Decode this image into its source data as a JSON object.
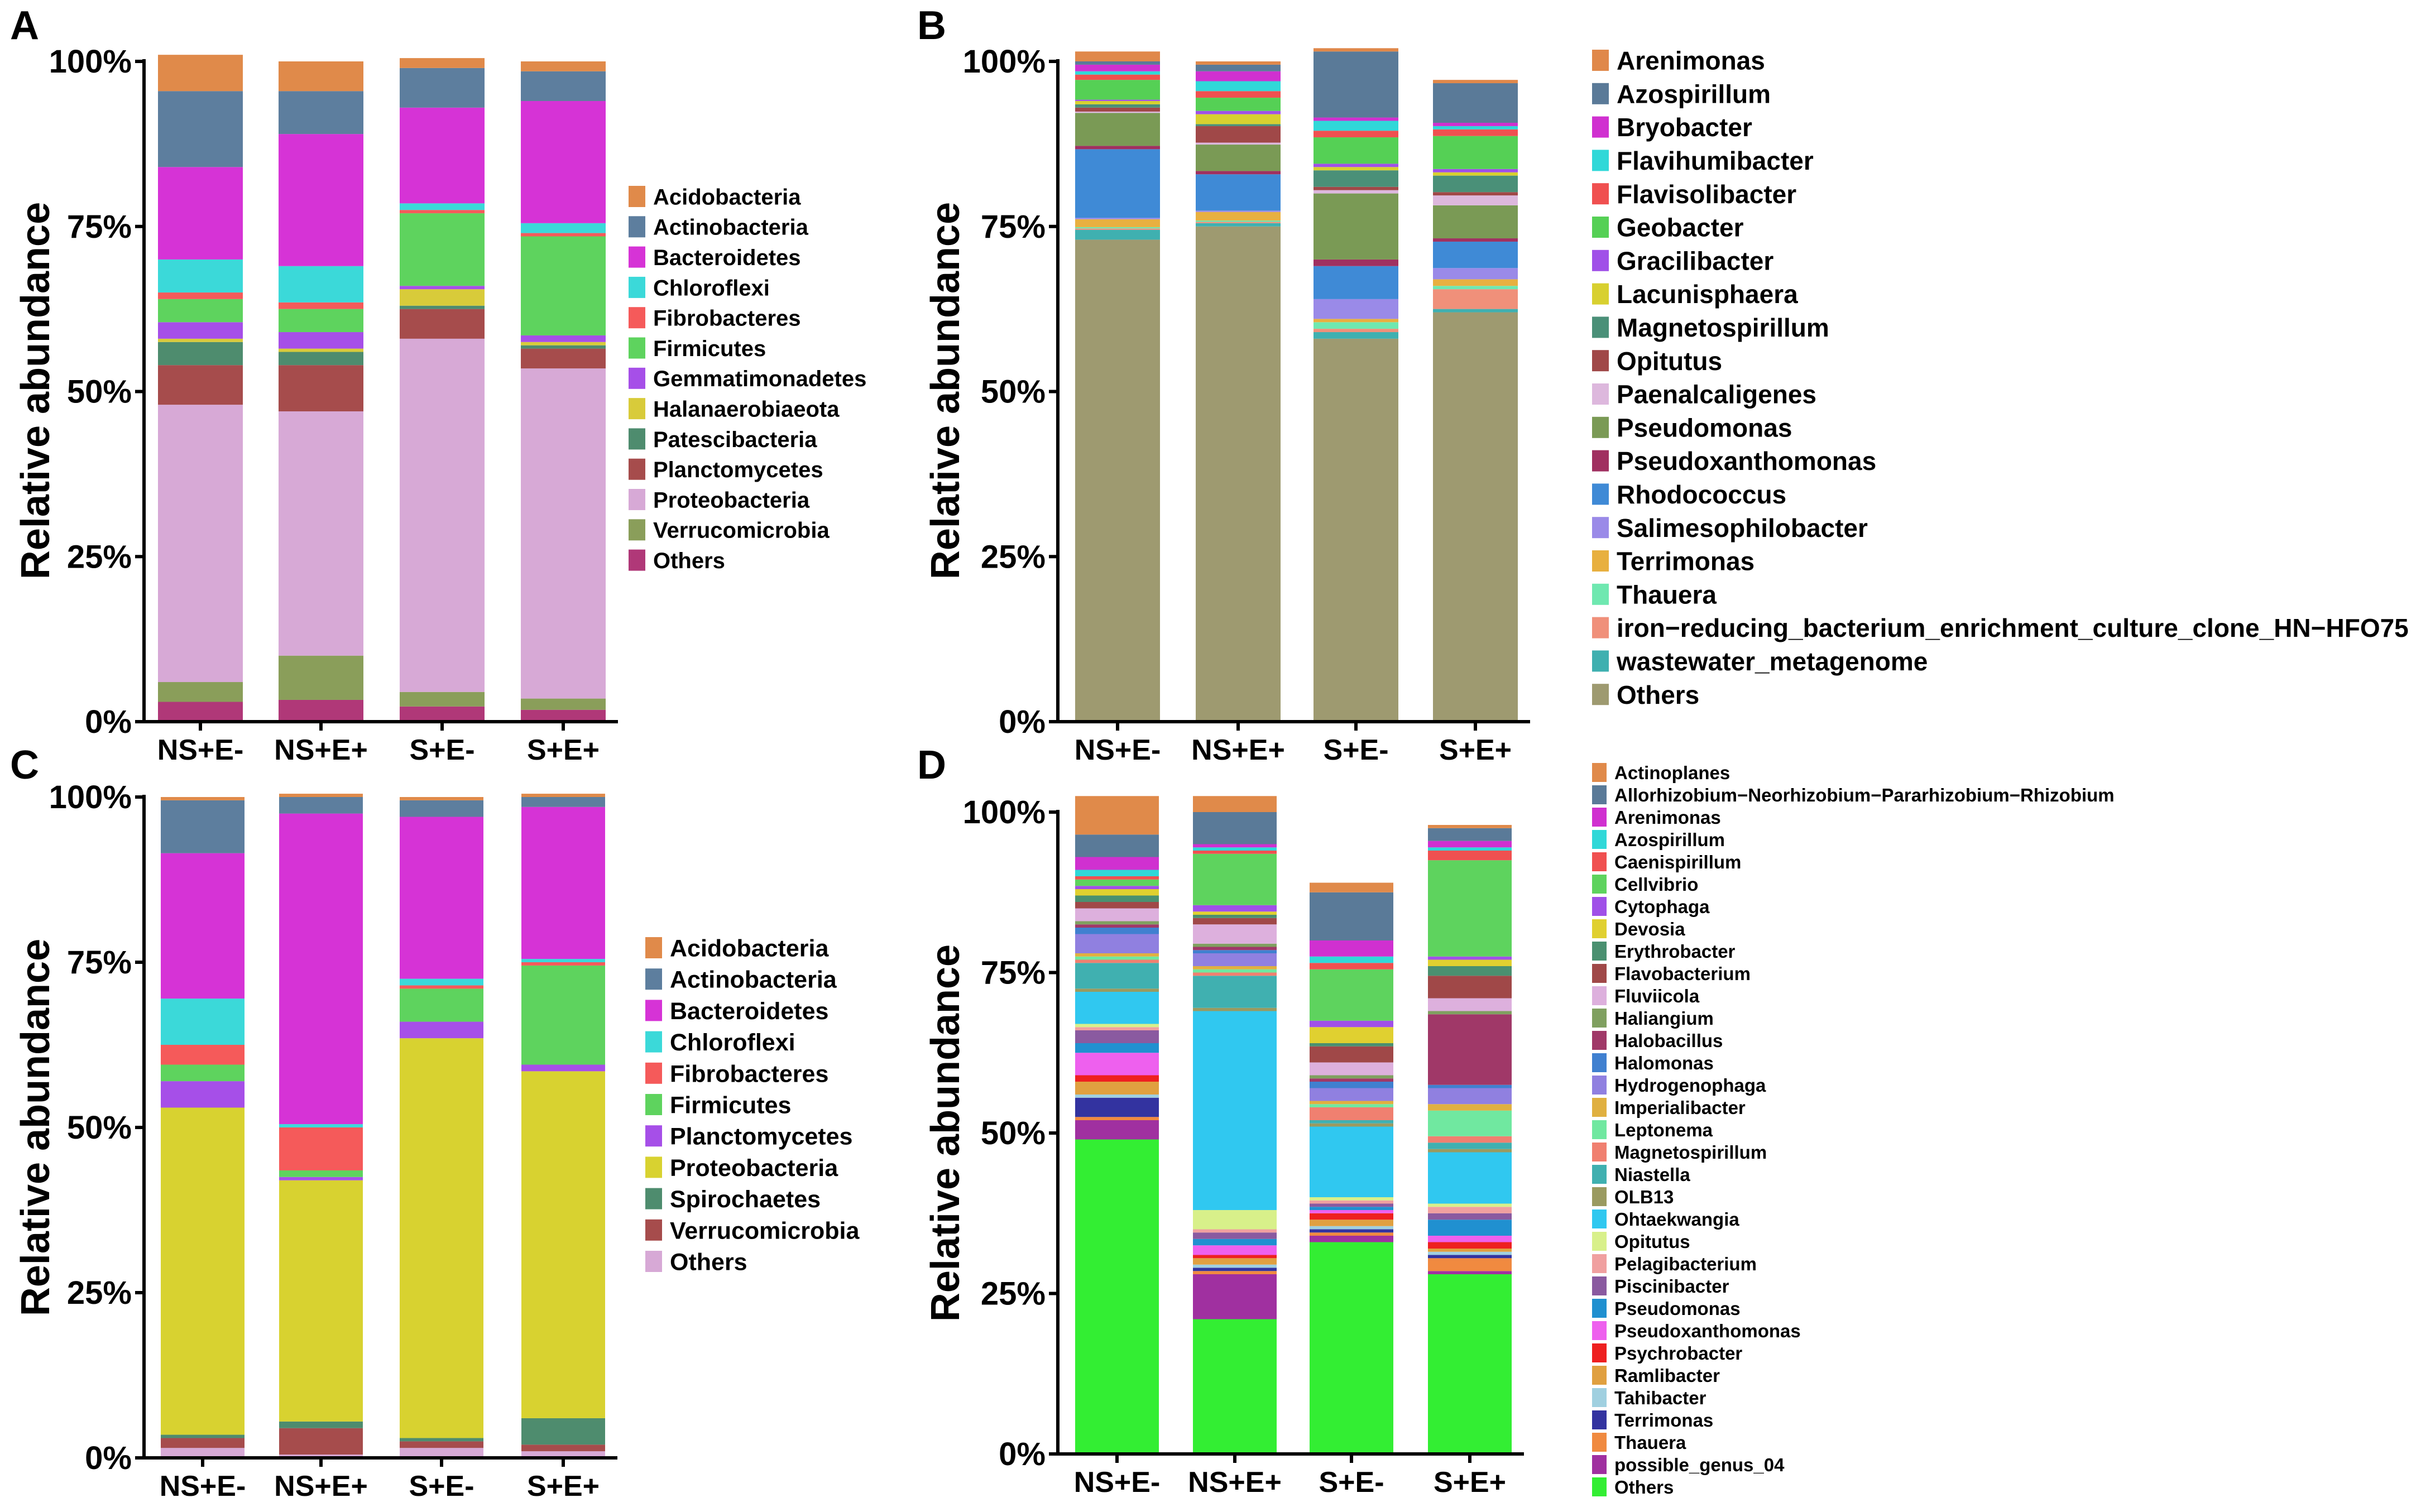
{
  "chart_data": [
    {
      "panel": "A",
      "type": "bar",
      "stacked": true,
      "ylabel": "Relative abundance",
      "xlabel": "",
      "ylim": [
        0,
        100
      ],
      "yticks": [
        "0%",
        "25%",
        "50%",
        "75%",
        "100%"
      ],
      "categories": [
        "NS+E-",
        "NS+E+",
        "S+E-",
        "S+E+"
      ],
      "legend_position": "right",
      "series": [
        {
          "name": "Others",
          "color": "#b03878",
          "values": [
            3,
            3.3,
            2.3,
            1.8
          ]
        },
        {
          "name": "Verrucomicrobia",
          "color": "#8a9e5a",
          "values": [
            3,
            6.7,
            2.2,
            1.7
          ]
        },
        {
          "name": "Proteobacteria",
          "color": "#d7a9d6",
          "values": [
            42,
            37,
            53.5,
            50
          ]
        },
        {
          "name": "Planctomycetes",
          "color": "#a64c4c",
          "values": [
            6,
            7,
            4.5,
            3
          ]
        },
        {
          "name": "Patescibacteria",
          "color": "#4e8c6e",
          "values": [
            3.5,
            2,
            0.5,
            0.5
          ]
        },
        {
          "name": "Halanaerobiaeota",
          "color": "#d8cb3a",
          "values": [
            0.5,
            0.5,
            2.5,
            0.5
          ]
        },
        {
          "name": "Gemmatimonadetes",
          "color": "#a64fe8",
          "values": [
            2.5,
            2.5,
            0.5,
            1
          ]
        },
        {
          "name": "Firmicutes",
          "color": "#5ed35e",
          "values": [
            3.5,
            3.5,
            11,
            15
          ]
        },
        {
          "name": "Fibrobacteres",
          "color": "#f55a5a",
          "values": [
            1,
            1,
            0.5,
            0.5
          ]
        },
        {
          "name": "Chloroflexi",
          "color": "#3bd9d9",
          "values": [
            5,
            5.5,
            1,
            1.5
          ]
        },
        {
          "name": "Bacteroidetes",
          "color": "#d633d6",
          "values": [
            14,
            20,
            14.5,
            18.5
          ]
        },
        {
          "name": "Actinobacteria",
          "color": "#5d7e9e",
          "values": [
            11.5,
            6.5,
            6,
            4.5
          ]
        },
        {
          "name": "Acidobacteria",
          "color": "#e08a4a",
          "values": [
            5.5,
            4.5,
            1.5,
            1.5
          ]
        }
      ],
      "legend": [
        "Acidobacteria",
        "Actinobacteria",
        "Bacteroidetes",
        "Chloroflexi",
        "Fibrobacteres",
        "Firmicutes",
        "Gemmatimonadetes",
        "Halanaerobiaeota",
        "Patescibacteria",
        "Planctomycetes",
        "Proteobacteria",
        "Verrucomicrobia",
        "Others"
      ]
    },
    {
      "panel": "B",
      "type": "bar",
      "stacked": true,
      "ylabel": "Relative abundance",
      "xlabel": "",
      "ylim": [
        0,
        100
      ],
      "yticks": [
        "0%",
        "25%",
        "50%",
        "75%",
        "100%"
      ],
      "categories": [
        "NS+E-",
        "NS+E+",
        "S+E-",
        "S+E+"
      ],
      "legend_position": "right",
      "series": [
        {
          "name": "Others",
          "color": "#9e9a70",
          "values": [
            73,
            75,
            58,
            62
          ]
        },
        {
          "name": "wastewater_metagenome",
          "color": "#3fb0b0",
          "values": [
            1.5,
            0.5,
            1,
            0.5
          ]
        },
        {
          "name": "iron-reducing_bacterium_enrichment_culture_clone_HN-HFO75",
          "color": "#f0907a",
          "values": [
            0.2,
            0.2,
            0.5,
            3
          ]
        },
        {
          "name": "Thauera",
          "color": "#6fe8b0",
          "values": [
            0.2,
            0.2,
            1,
            0.5
          ]
        },
        {
          "name": "Terrimonas",
          "color": "#e8b040",
          "values": [
            1.2,
            1.3,
            0.5,
            1
          ]
        },
        {
          "name": "Salimesophilobacter",
          "color": "#9a8ae8",
          "values": [
            0.2,
            0.2,
            3,
            1.7
          ]
        },
        {
          "name": "Rhodococcus",
          "color": "#3f8ad6",
          "values": [
            10.4,
            5.5,
            5,
            4
          ]
        },
        {
          "name": "Pseudoxanthomonas",
          "color": "#a03060",
          "values": [
            0.5,
            0.5,
            1,
            0.5
          ]
        },
        {
          "name": "Pseudomonas",
          "color": "#7a9a55",
          "values": [
            5,
            4,
            10,
            5
          ]
        },
        {
          "name": "Paenalcaligenes",
          "color": "#ddb8dd",
          "values": [
            0.2,
            0.3,
            0.5,
            1.5
          ]
        },
        {
          "name": "Opitutus",
          "color": "#a04848",
          "values": [
            0.6,
            2.5,
            0.5,
            0.5
          ]
        },
        {
          "name": "Magnetospirillum",
          "color": "#4a9078",
          "values": [
            0.5,
            0.3,
            2.5,
            2.5
          ]
        },
        {
          "name": "Lacunisphaera",
          "color": "#d8d030",
          "values": [
            0.5,
            1.5,
            0.5,
            0.5
          ]
        },
        {
          "name": "Gracilibacter",
          "color": "#a050e8",
          "values": [
            0.2,
            0.5,
            0.5,
            0.5
          ]
        },
        {
          "name": "Geobacter",
          "color": "#55d055",
          "values": [
            3,
            2,
            4,
            5
          ]
        },
        {
          "name": "Flavisolibacter",
          "color": "#f05050",
          "values": [
            0.8,
            1,
            1,
            1
          ]
        },
        {
          "name": "Flavihumibacter",
          "color": "#30d8d8",
          "values": [
            0.5,
            1.5,
            1.5,
            0.5
          ]
        },
        {
          "name": "Bryobacter",
          "color": "#d030d0",
          "values": [
            1,
            1.5,
            0.5,
            0.5
          ]
        },
        {
          "name": "Azospirillum",
          "color": "#5a7a98",
          "values": [
            0.5,
            1,
            10,
            6
          ]
        },
        {
          "name": "Arenimonas",
          "color": "#e0884a",
          "values": [
            1.5,
            0.5,
            0.5,
            0.5
          ]
        }
      ],
      "legend": [
        "Arenimonas",
        "Azospirillum",
        "Bryobacter",
        "Flavihumibacter",
        "Flavisolibacter",
        "Geobacter",
        "Gracilibacter",
        "Lacunisphaera",
        "Magnetospirillum",
        "Opitutus",
        "Paenalcaligenes",
        "Pseudomonas",
        "Pseudoxanthomonas",
        "Rhodococcus",
        "Salimesophilobacter",
        "Terrimonas",
        "Thauera",
        "iron−reducing_bacterium_enrichment_culture_clone_HN−HFO75",
        "wastewater_metagenome",
        "Others"
      ]
    },
    {
      "panel": "C",
      "type": "bar",
      "stacked": true,
      "ylabel": "Relative abundance",
      "xlabel": "",
      "ylim": [
        0,
        100
      ],
      "yticks": [
        "0%",
        "25%",
        "50%",
        "75%",
        "100%"
      ],
      "categories": [
        "NS+E-",
        "NS+E+",
        "S+E-",
        "S+E+"
      ],
      "legend_position": "right",
      "series": [
        {
          "name": "Others",
          "color": "#d7a9d6",
          "values": [
            1.5,
            0.5,
            1.5,
            1
          ]
        },
        {
          "name": "Verrucomicrobia",
          "color": "#a64c4c",
          "values": [
            1.5,
            4,
            1,
            1
          ]
        },
        {
          "name": "Spirochaetes",
          "color": "#4e8c6e",
          "values": [
            0.5,
            1,
            0.5,
            4
          ]
        },
        {
          "name": "Proteobacteria",
          "color": "#d8d230",
          "values": [
            49.5,
            36.5,
            60.5,
            52.5
          ]
        },
        {
          "name": "Planctomycetes",
          "color": "#a64fe8",
          "values": [
            4,
            0.5,
            2.5,
            1
          ]
        },
        {
          "name": "Firmicutes",
          "color": "#5ed35e",
          "values": [
            2.5,
            1,
            5,
            15
          ]
        },
        {
          "name": "Fibrobacteres",
          "color": "#f55a5a",
          "values": [
            3,
            6.5,
            0.5,
            0.5
          ]
        },
        {
          "name": "Chloroflexi",
          "color": "#3bd9d9",
          "values": [
            7,
            0.5,
            1,
            0.5
          ]
        },
        {
          "name": "Bacteroidetes",
          "color": "#d633d6",
          "values": [
            22,
            47,
            24.5,
            23
          ]
        },
        {
          "name": "Actinobacteria",
          "color": "#5d7e9e",
          "values": [
            8,
            2.5,
            2.5,
            1.5
          ]
        },
        {
          "name": "Acidobacteria",
          "color": "#e08a4a",
          "values": [
            0.5,
            0.5,
            0.5,
            0.5
          ]
        }
      ],
      "legend": [
        "Acidobacteria",
        "Actinobacteria",
        "Bacteroidetes",
        "Chloroflexi",
        "Fibrobacteres",
        "Firmicutes",
        "Planctomycetes",
        "Proteobacteria",
        "Spirochaetes",
        "Verrucomicrobia",
        "Others"
      ]
    },
    {
      "panel": "D",
      "type": "bar",
      "stacked": true,
      "ylabel": "Relative abundance",
      "xlabel": "",
      "ylim": [
        0,
        100
      ],
      "yticks": [
        "0%",
        "25%",
        "50%",
        "75%",
        "100%"
      ],
      "categories": [
        "NS+E-",
        "NS+E+",
        "S+E-",
        "S+E+"
      ],
      "legend_position": "right",
      "series": [
        {
          "name": "Others",
          "color": "#33ee33",
          "values": [
            49,
            21,
            33,
            28
          ]
        },
        {
          "name": "possible_genus_04",
          "color": "#a030a0",
          "values": [
            3,
            7,
            1,
            0.5
          ]
        },
        {
          "name": "Thauera",
          "color": "#f08a40",
          "values": [
            0.5,
            0.5,
            0.5,
            2
          ]
        },
        {
          "name": "Terrimonas",
          "color": "#3333a0",
          "values": [
            3,
            0.5,
            0.5,
            0.5
          ]
        },
        {
          "name": "Tahibacter",
          "color": "#a0d0e0",
          "values": [
            0.5,
            0.5,
            0.5,
            0.5
          ]
        },
        {
          "name": "Ramlibacter",
          "color": "#e0a040",
          "values": [
            2,
            1,
            1,
            0.5
          ]
        },
        {
          "name": "Psychrobacter",
          "color": "#ee2020",
          "values": [
            1,
            0.5,
            1,
            1
          ]
        },
        {
          "name": "Pseudoxanthomonas",
          "color": "#ee60ee",
          "values": [
            3.5,
            1.5,
            0.5,
            1
          ]
        },
        {
          "name": "Pseudomonas",
          "color": "#2090d0",
          "values": [
            1.5,
            1,
            0.5,
            2.5
          ]
        },
        {
          "name": "Piscinibacter",
          "color": "#8a5aa0",
          "values": [
            2,
            1,
            0.5,
            1
          ]
        },
        {
          "name": "Pelagibacterium",
          "color": "#f0a0a0",
          "values": [
            0.5,
            0.5,
            0.5,
            1
          ]
        },
        {
          "name": "Opitutus",
          "color": "#d8f08a",
          "values": [
            0.5,
            3,
            0.5,
            0.5
          ]
        },
        {
          "name": "Ohtaekwangia",
          "color": "#30c8f0",
          "values": [
            5,
            31,
            11,
            8
          ]
        },
        {
          "name": "OLB13",
          "color": "#9a9a60",
          "values": [
            0.5,
            0.5,
            0.5,
            0.5
          ]
        },
        {
          "name": "Niastella",
          "color": "#40b0b0",
          "values": [
            4,
            5,
            0.5,
            1
          ]
        },
        {
          "name": "Magnetospirillum",
          "color": "#f08070",
          "values": [
            0.5,
            0.5,
            2,
            1
          ]
        },
        {
          "name": "Leptonema",
          "color": "#70e8a0",
          "values": [
            0.5,
            0.5,
            0.5,
            4
          ]
        },
        {
          "name": "Imperialibacter",
          "color": "#e0b040",
          "values": [
            0.5,
            0.5,
            0.5,
            1
          ]
        },
        {
          "name": "Hydrogenophaga",
          "color": "#9080e0",
          "values": [
            3,
            2,
            2,
            2.5
          ]
        },
        {
          "name": "Halomonas",
          "color": "#4080d0",
          "values": [
            1,
            0.5,
            1,
            0.5
          ]
        },
        {
          "name": "Halobacillus",
          "color": "#a03868",
          "values": [
            0.5,
            0.5,
            0.5,
            11
          ]
        },
        {
          "name": "Haliangium",
          "color": "#80a060",
          "values": [
            0.5,
            0.5,
            0.5,
            0.5
          ]
        },
        {
          "name": "Fluviicola",
          "color": "#ddb0dd",
          "values": [
            2,
            3,
            2,
            2
          ]
        },
        {
          "name": "Flavobacterium",
          "color": "#a04848",
          "values": [
            1,
            1,
            2.5,
            3.5
          ]
        },
        {
          "name": "Erythrobacter",
          "color": "#4a9070",
          "values": [
            1,
            0.5,
            0.5,
            1.5
          ]
        },
        {
          "name": "Devosia",
          "color": "#e0d030",
          "values": [
            1,
            0.5,
            2.5,
            1
          ]
        },
        {
          "name": "Cytophaga",
          "color": "#a050e8",
          "values": [
            0.5,
            1,
            1,
            0.5
          ]
        },
        {
          "name": "Cellvibrio",
          "color": "#5ed35e",
          "values": [
            1,
            8,
            8,
            15
          ]
        },
        {
          "name": "Caenispirillum",
          "color": "#f05050",
          "values": [
            0.5,
            0.5,
            1,
            1.5
          ]
        },
        {
          "name": "Azospirillum",
          "color": "#30d8d8",
          "values": [
            1,
            0.5,
            1,
            0.5
          ]
        },
        {
          "name": "Arenimonas",
          "color": "#d030d0",
          "values": [
            2,
            0.5,
            2.5,
            1
          ]
        },
        {
          "name": "Allorhizobium-Neorhizobium-Pararhizobium-Rhizobium",
          "color": "#5a7a98",
          "values": [
            3.5,
            5,
            7.5,
            2
          ]
        },
        {
          "name": "Actinoplanes",
          "color": "#e08a4a",
          "values": [
            6,
            2.5,
            1.5,
            0.5
          ]
        }
      ],
      "legend": [
        "Actinoplanes",
        "Allorhizobium−Neorhizobium−Pararhizobium−Rhizobium",
        "Arenimonas",
        "Azospirillum",
        "Caenispirillum",
        "Cellvibrio",
        "Cytophaga",
        "Devosia",
        "Erythrobacter",
        "Flavobacterium",
        "Fluviicola",
        "Haliangium",
        "Halobacillus",
        "Halomonas",
        "Hydrogenophaga",
        "Imperialibacter",
        "Leptonema",
        "Magnetospirillum",
        "Niastella",
        "OLB13",
        "Ohtaekwangia",
        "Opitutus",
        "Pelagibacterium",
        "Piscinibacter",
        "Pseudomonas",
        "Pseudoxanthomonas",
        "Psychrobacter",
        "Ramlibacter",
        "Tahibacter",
        "Terrimonas",
        "Thauera",
        "possible_genus_04",
        "Others"
      ]
    }
  ]
}
